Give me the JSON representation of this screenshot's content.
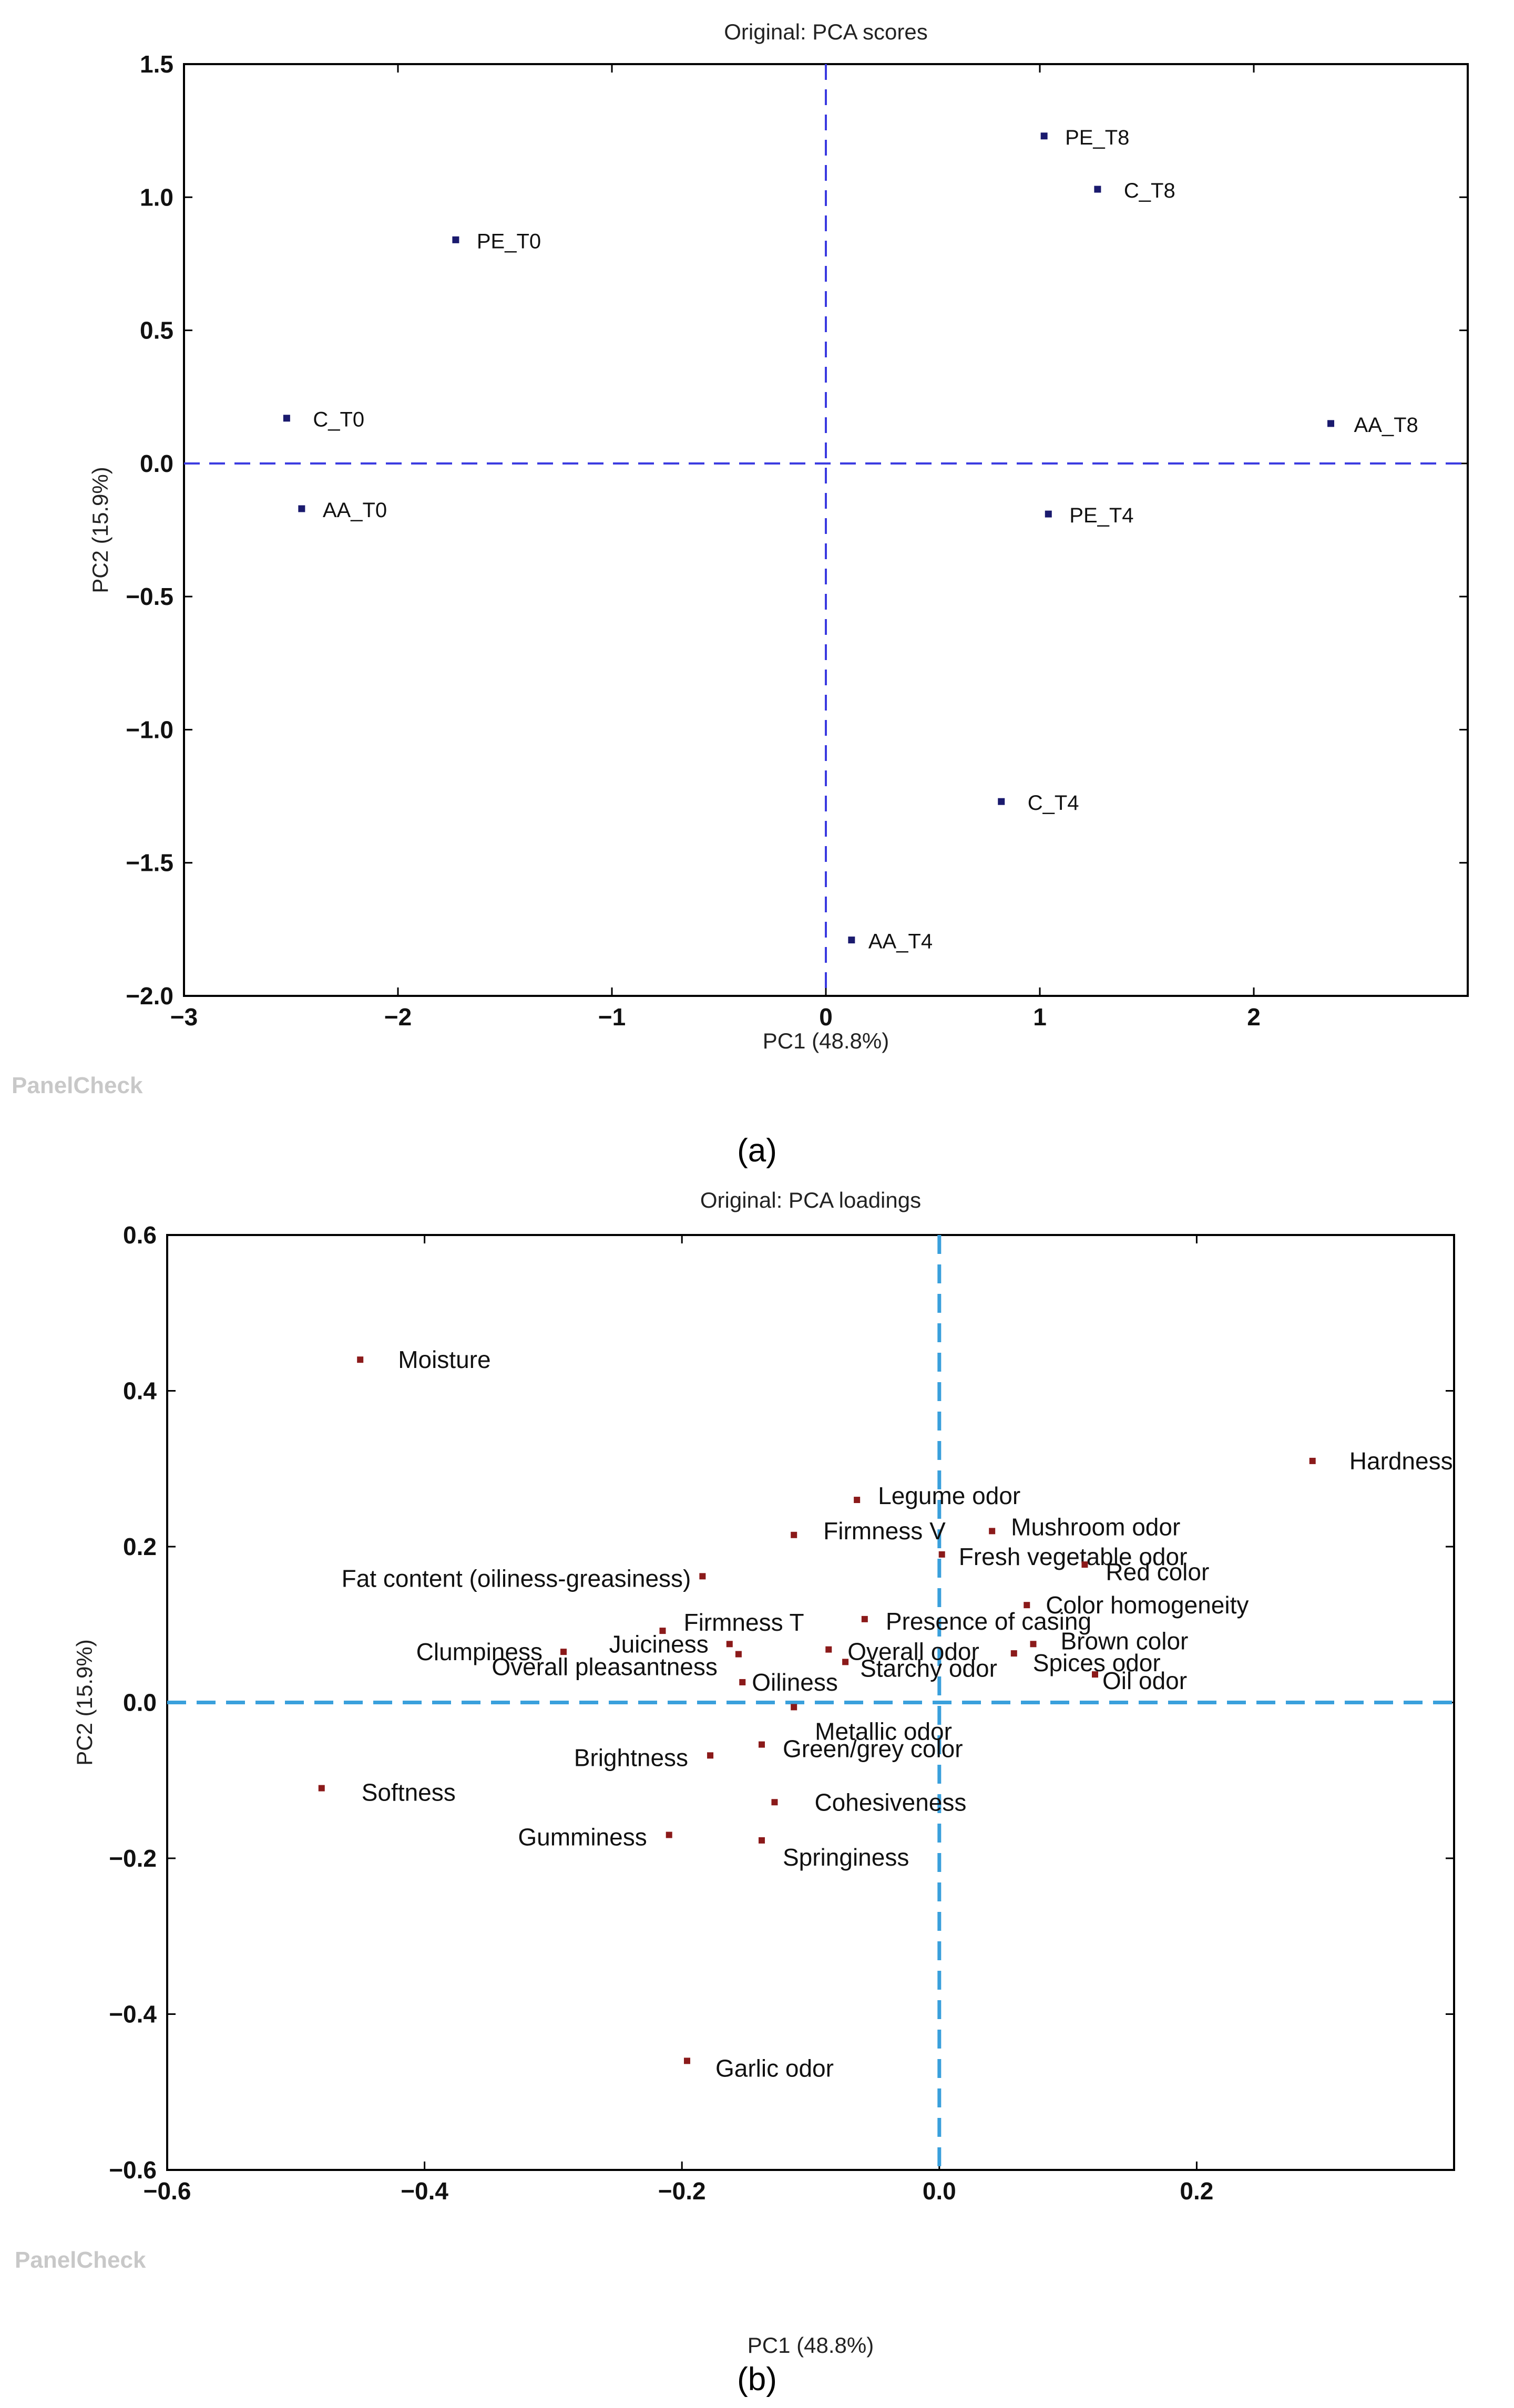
{
  "chart_data": [
    {
      "panel": "(a)",
      "type": "scatter",
      "title": "Original: PCA scores",
      "xlabel": "PC1 (48.8%)",
      "ylabel": "PC2 (15.9%)",
      "xlim": [
        -3,
        3
      ],
      "ylim": [
        -2.0,
        1.5
      ],
      "xticks": [
        -3,
        -2,
        -1,
        0,
        1,
        2
      ],
      "xtick_labels": [
        "−3",
        "−2",
        "−1",
        "0",
        "1",
        "2"
      ],
      "yticks": [
        1.5,
        1.0,
        0.5,
        0.0,
        -0.5,
        -1.0,
        -1.5,
        -2.0
      ],
      "ytick_labels": [
        "1.5",
        "1.0",
        "0.5",
        "0.0",
        "−0.5",
        "−1.0",
        "−1.5",
        "−2.0"
      ],
      "reference_lines": [
        {
          "axis": "x",
          "value": 0
        },
        {
          "axis": "y",
          "value": 0
        }
      ],
      "watermark": "PanelCheck",
      "marker_color": "#1a1a6e",
      "points": [
        {
          "label": "PE_T8",
          "x": 1.02,
          "y": 1.23
        },
        {
          "label": "C_T8",
          "x": 1.27,
          "y": 1.03
        },
        {
          "label": "PE_T0",
          "x": -1.73,
          "y": 0.84
        },
        {
          "label": "C_T0",
          "x": -2.52,
          "y": 0.17
        },
        {
          "label": "AA_T8",
          "x": 2.36,
          "y": 0.15
        },
        {
          "label": "AA_T0",
          "x": -2.45,
          "y": -0.17
        },
        {
          "label": "PE_T4",
          "x": 1.04,
          "y": -0.19
        },
        {
          "label": "C_T4",
          "x": 0.82,
          "y": -1.27
        },
        {
          "label": "AA_T4",
          "x": 0.12,
          "y": -1.79
        }
      ]
    },
    {
      "panel": "(b)",
      "type": "scatter",
      "title": "Original: PCA loadings",
      "xlabel": "PC1 (48.8%)",
      "ylabel": "PC2 (15.9%)",
      "xlim": [
        -0.6,
        0.4
      ],
      "ylim": [
        -0.6,
        0.6
      ],
      "xticks": [
        -0.6,
        -0.4,
        -0.2,
        0.0,
        0.2
      ],
      "xtick_labels": [
        "−0.6",
        "−0.4",
        "−0.2",
        "0.0",
        "0.2"
      ],
      "yticks": [
        0.6,
        0.4,
        0.2,
        0.0,
        -0.2,
        -0.4,
        -0.6
      ],
      "ytick_labels": [
        "0.6",
        "0.4",
        "0.2",
        "0.0",
        "−0.2",
        "−0.4",
        "−0.6"
      ],
      "reference_lines": [
        {
          "axis": "x",
          "value": 0
        },
        {
          "axis": "y",
          "value": 0
        }
      ],
      "watermark": "PanelCheck",
      "marker_color": "#8b1a1a",
      "points": [
        {
          "label": "Moisture",
          "x": -0.45,
          "y": 0.44
        },
        {
          "label": "Hardness",
          "x": 0.29,
          "y": 0.31
        },
        {
          "label": "Legume odor",
          "x": -0.064,
          "y": 0.26
        },
        {
          "label": "Firmness V",
          "x": -0.113,
          "y": 0.215
        },
        {
          "label": "Mushroom odor",
          "x": 0.041,
          "y": 0.22
        },
        {
          "label": "Fresh vegetable odor",
          "x": 0.002,
          "y": 0.19
        },
        {
          "label": "Red color",
          "x": 0.113,
          "y": 0.177
        },
        {
          "label": "Fat content (oiliness-greasiness)",
          "x": -0.184,
          "y": 0.162
        },
        {
          "label": "Color homogeneity",
          "x": 0.068,
          "y": 0.125
        },
        {
          "label": "Firmness T",
          "x": -0.215,
          "y": 0.092
        },
        {
          "label": "Presence of casing",
          "x": -0.058,
          "y": 0.107
        },
        {
          "label": "Clumpiness",
          "x": -0.292,
          "y": 0.065
        },
        {
          "label": "Juiciness",
          "x": -0.163,
          "y": 0.075
        },
        {
          "label": "Overall pleasantness",
          "x": -0.156,
          "y": 0.062
        },
        {
          "label": "Overall odor",
          "x": -0.086,
          "y": 0.068
        },
        {
          "label": "Brown color",
          "x": 0.073,
          "y": 0.075
        },
        {
          "label": "Spices odor",
          "x": 0.058,
          "y": 0.063
        },
        {
          "label": "Starchy odor",
          "x": -0.073,
          "y": 0.052
        },
        {
          "label": "Oil odor",
          "x": 0.121,
          "y": 0.036
        },
        {
          "label": "Oiliness",
          "x": -0.153,
          "y": 0.026
        },
        {
          "label": "Metallic odor",
          "x": -0.113,
          "y": -0.006
        },
        {
          "label": "Green/grey color",
          "x": -0.138,
          "y": -0.054
        },
        {
          "label": "Brightness",
          "x": -0.178,
          "y": -0.068
        },
        {
          "label": "Cohesiveness",
          "x": -0.128,
          "y": -0.128
        },
        {
          "label": "Softness",
          "x": -0.48,
          "y": -0.11
        },
        {
          "label": "Gumminess",
          "x": -0.21,
          "y": -0.17
        },
        {
          "label": "Springiness",
          "x": -0.138,
          "y": -0.177
        },
        {
          "label": "Garlic odor",
          "x": -0.196,
          "y": -0.46
        }
      ]
    }
  ]
}
